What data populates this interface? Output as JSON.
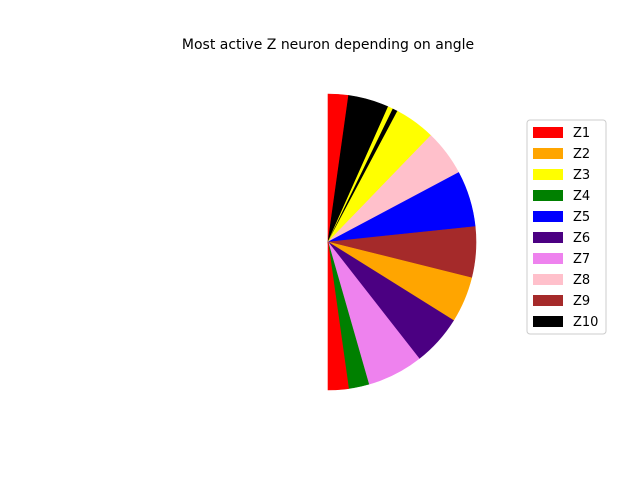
{
  "chart_data": {
    "type": "pie",
    "title": "Most active Z neuron depending on angle",
    "angle_unit": "degrees",
    "angle_convention": "0 = straight up, clockwise positive",
    "legend_placement": "right",
    "legend": [
      {
        "label": "Z1",
        "color": "#ff0000"
      },
      {
        "label": "Z2",
        "color": "#ffa500"
      },
      {
        "label": "Z3",
        "color": "#ffff00"
      },
      {
        "label": "Z4",
        "color": "#008000"
      },
      {
        "label": "Z5",
        "color": "#0000ff"
      },
      {
        "label": "Z6",
        "color": "#4b0082"
      },
      {
        "label": "Z7",
        "color": "#ee82ee"
      },
      {
        "label": "Z8",
        "color": "#ffc0cb"
      },
      {
        "label": "Z9",
        "color": "#a52a2a"
      },
      {
        "label": "Z10",
        "color": "#000000"
      }
    ],
    "sectors": [
      {
        "neuron": "Z1",
        "start": 0,
        "end": 8
      },
      {
        "neuron": "Z10",
        "start": 8,
        "end": 24
      },
      {
        "neuron": "Z3",
        "start": 24,
        "end": 26
      },
      {
        "neuron": "Z10",
        "start": 26,
        "end": 28
      },
      {
        "neuron": "Z3",
        "start": 28,
        "end": 44
      },
      {
        "neuron": "Z8",
        "start": 44,
        "end": 62
      },
      {
        "neuron": "Z5",
        "start": 62,
        "end": 84
      },
      {
        "neuron": "Z9",
        "start": 84,
        "end": 104
      },
      {
        "neuron": "Z2",
        "start": 104,
        "end": 122
      },
      {
        "neuron": "Z6",
        "start": 122,
        "end": 142
      },
      {
        "neuron": "Z7",
        "start": 142,
        "end": 164
      },
      {
        "neuron": "Z4",
        "start": 164,
        "end": 170
      },
      {
        "neuron": "Z4",
        "start": 170,
        "end": 172
      },
      {
        "neuron": "Z1",
        "start": 172,
        "end": 174
      },
      {
        "neuron": "Z1",
        "start": 174,
        "end": 180
      }
    ]
  }
}
